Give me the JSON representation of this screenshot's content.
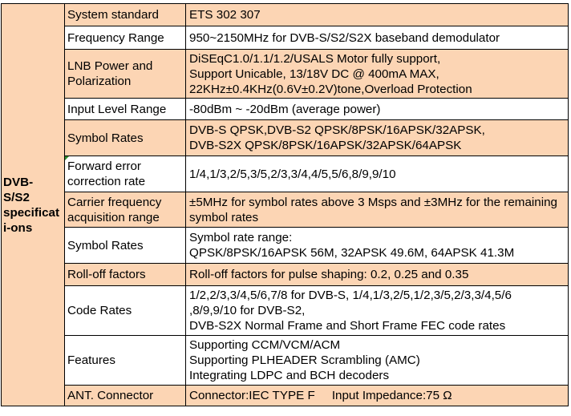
{
  "group_label": "DVB-S/S2 specificati-ons",
  "rows": [
    {
      "param": "System standard",
      "lines": [
        "ETS 302 307"
      ],
      "shade": "tan"
    },
    {
      "param": "Frequency Range",
      "lines": [
        "950~2150MHz for DVB-S/S2/S2X baseband demodulator"
      ],
      "shade": "white"
    },
    {
      "param": "LNB Power and Polarization",
      "param_lines": [
        "LNB Power and",
        "Polarization"
      ],
      "lines": [
        "DiSEqC1.0/1.1/1.2/USALS Motor fully support,",
        "Support Unicable, 13/18V DC @ 400mA MAX,",
        "22KHz±0.4KHz(0.6V±0.2V)tone,Overload Protection"
      ],
      "shade": "tan"
    },
    {
      "param": "Input Level Range",
      "lines": [
        "-80dBm ~ -20dBm (average power)"
      ],
      "shade": "white"
    },
    {
      "param": "Symbol Rates",
      "lines": [
        "DVB-S QPSK,DVB-S2 QPSK/8PSK/16APSK/32APSK,",
        "DVB-S2X QPSK/8PSK/16APSK/32APSK/64APSK"
      ],
      "shade": "tan"
    },
    {
      "param": "Forward error correction rate",
      "param_lines": [
        "Forward error",
        "correction rate"
      ],
      "lines": [
        "1/4,1/3,2/5,3/5,2/3,3/4,4/5,5/6,8/9,9/10"
      ],
      "shade": "white"
    },
    {
      "param": "Carrier frequency acquisition range",
      "param_lines": [
        "Carrier frequency",
        "acquisition range"
      ],
      "lines": [
        "±5MHz for symbol rates above 3 Msps and ±3MHz for the remaining",
        "symbol rates"
      ],
      "shade": "tan"
    },
    {
      "param": "Symbol Rates",
      "lines": [
        "Symbol rate range:",
        "QPSK/8PSK/16APSK 56M, 32APSK 49.6M, 64APSK 41.3M"
      ],
      "shade": "white"
    },
    {
      "param": "Roll-off factors",
      "lines": [
        "Roll-off factors for pulse shaping: 0.2, 0.25 and 0.35"
      ],
      "shade": "tan"
    },
    {
      "param": "Code Rates",
      "lines": [
        "1/2,2/3,3/4,5/6,7/8 for DVB-S, 1/4,1/3,2/5,1/2,3/5,2/3,3/4,5/6",
        ",8/9,9/10 for DVB-S2,",
        "DVB-S2X Normal Frame and Short Frame FEC code rates"
      ],
      "shade": "white"
    },
    {
      "param": "Features",
      "lines": [
        "Supporting CCM/VCM/ACM",
        "Supporting PLHEADER Scrambling (AMC)",
        "Integrating LDPC and BCH decoders"
      ],
      "shade": "white"
    },
    {
      "param": "ANT. Connector",
      "lines": [
        "Connector:IEC TYPE F     Input Impedance:75 Ω"
      ],
      "shade": "tan"
    }
  ]
}
